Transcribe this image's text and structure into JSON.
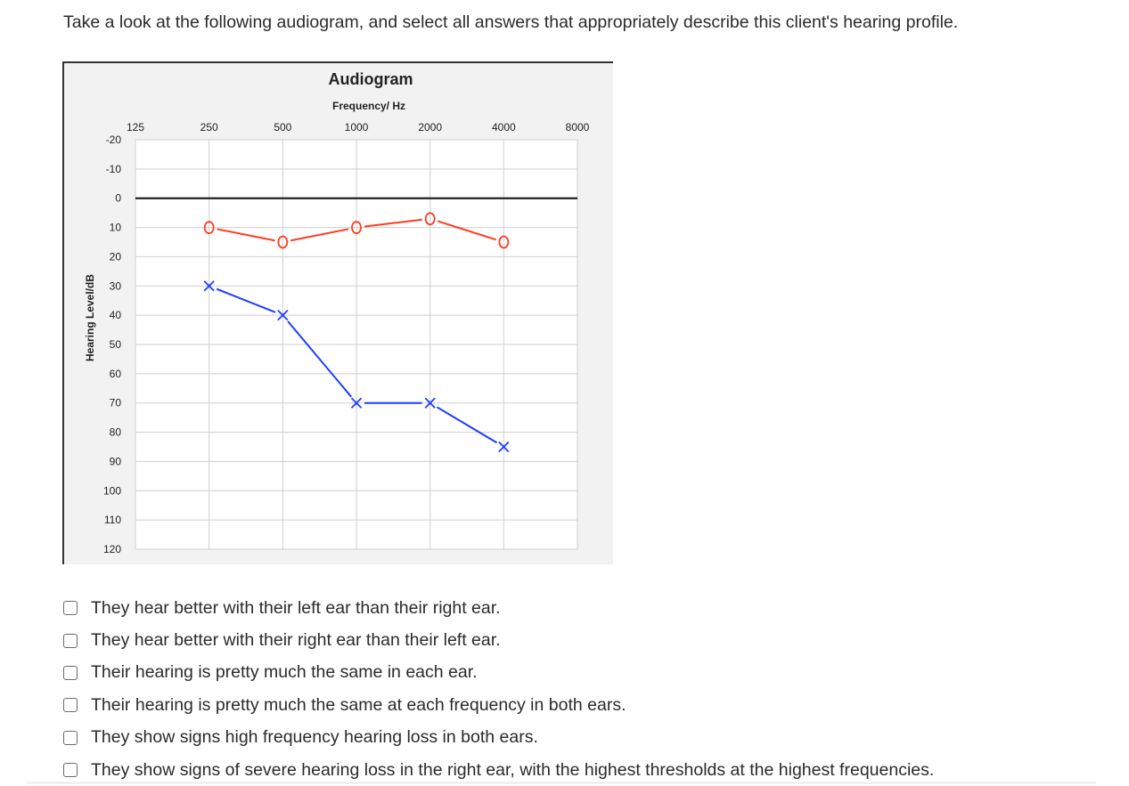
{
  "question": "Take a look at the following audiogram, and select all answers that appropriately describe this client's hearing profile.",
  "chart_data": {
    "type": "line",
    "title": "Audiogram",
    "xlabel": "Frequency/ Hz",
    "ylabel": "Hearing Level/dB",
    "x_scale": "log2",
    "y_inverted": true,
    "x_ticks": [
      125,
      250,
      500,
      1000,
      2000,
      4000,
      8000
    ],
    "y_ticks": [
      -20,
      -10,
      0,
      10,
      20,
      30,
      40,
      50,
      60,
      70,
      80,
      90,
      100,
      110,
      120
    ],
    "ylim": [
      -20,
      120
    ],
    "xlim": [
      125,
      8000
    ],
    "grid": true,
    "reference_line_db": 0,
    "series": [
      {
        "marker": "O",
        "color": "#ff3c1f",
        "x": [
          250,
          500,
          1000,
          2000,
          4000
        ],
        "y": [
          10,
          15,
          10,
          7,
          15
        ]
      },
      {
        "marker": "X",
        "color": "#1f3cff",
        "x": [
          250,
          500,
          1000,
          2000,
          4000
        ],
        "y": [
          30,
          40,
          70,
          70,
          85
        ]
      }
    ]
  },
  "options": [
    {
      "label": "They hear better with their left ear than their right ear.",
      "checked": false
    },
    {
      "label": "They hear better with their right ear than their left ear.",
      "checked": false
    },
    {
      "label": "Their hearing is pretty much the same in each ear.",
      "checked": false
    },
    {
      "label": "Their hearing is pretty much the same at each frequency in both ears.",
      "checked": false
    },
    {
      "label": "They show signs high frequency hearing loss in both ears.",
      "checked": false
    },
    {
      "label": "They show signs of severe hearing loss in the right ear, with the highest thresholds at the highest frequencies.",
      "checked": false
    }
  ]
}
